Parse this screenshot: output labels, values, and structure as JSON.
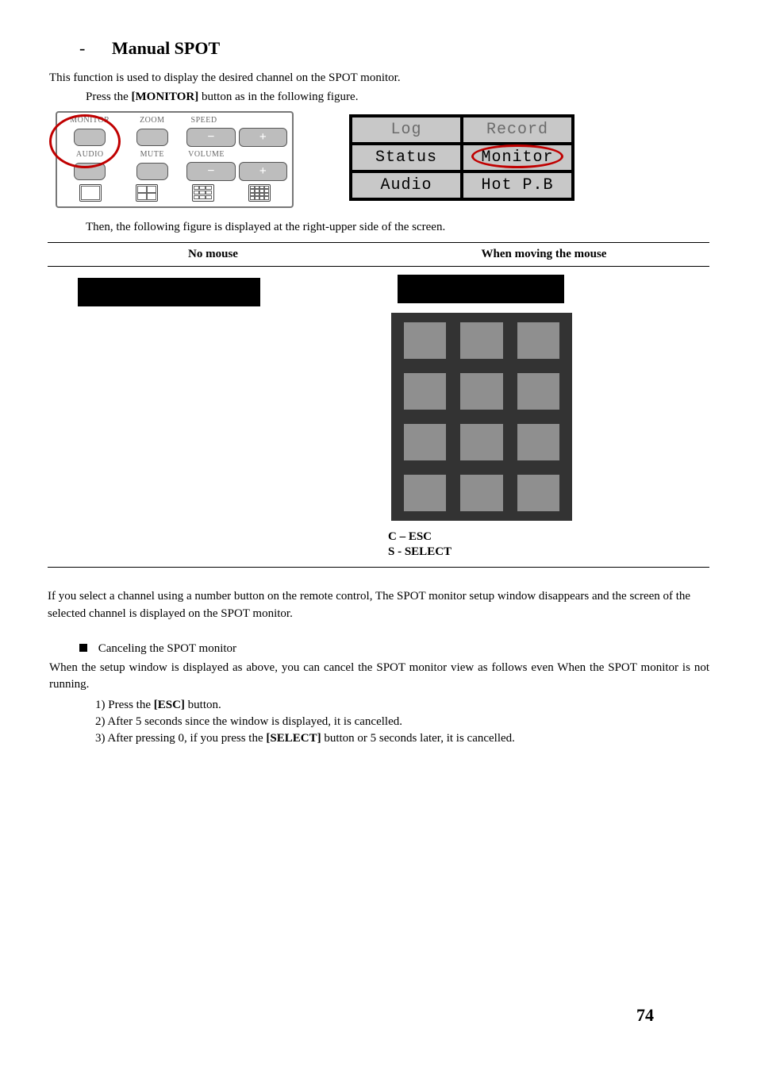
{
  "heading": {
    "dash": "-",
    "title": "Manual SPOT"
  },
  "intro": "This function is used to display the desired channel on the SPOT monitor.",
  "press_line_pre": "Press the ",
  "press_line_btn": "[MONITOR]",
  "press_line_post": " button as in the following figure.",
  "remote": {
    "row1": {
      "left_cap": "MONITOR",
      "mid_cap": "ZOOM",
      "right_cap": "SPEED"
    },
    "row2": {
      "left_cap": "AUDIO",
      "mid_cap": "MUTE",
      "right_cap": "VOLUME"
    },
    "minus": "−",
    "plus": "+"
  },
  "menu": {
    "cells": [
      {
        "label": "Log",
        "gray": true
      },
      {
        "label": "Record",
        "gray": true
      },
      {
        "label": "Status",
        "gray": false
      },
      {
        "label": "Monitor",
        "gray": false
      },
      {
        "label": "Audio",
        "gray": false
      },
      {
        "label": "Hot P.B",
        "gray": false
      }
    ],
    "oval_cell_index": 3
  },
  "then_line": "Then, the following figure is displayed at the right-upper side of the screen.",
  "table": {
    "head_left": "No mouse",
    "head_right": "When moving the mouse",
    "caption1": "C – ESC",
    "caption2": "S - SELECT",
    "numpad_rows": 4,
    "numpad_cols": 3
  },
  "select_para": "If you select a channel using a number button on the remote control, The SPOT monitor setup window disappears and the screen of the selected channel is displayed on the SPOT monitor.",
  "cancel_title": "Canceling the SPOT monitor",
  "cancel_para": "When the setup window is displayed as above, you can cancel the SPOT monitor view as follows even When the SPOT monitor is not running.",
  "steps": {
    "s1_pre": "1)  Press the ",
    "s1_b": "[ESC]",
    "s1_post": " button.",
    "s2": "2)  After 5 seconds since the window is displayed, it is cancelled.",
    "s3_pre": "3)  After pressing 0, if you press the ",
    "s3_b": "[SELECT]",
    "s3_post": " button or 5 seconds later, it is cancelled."
  },
  "page_number": "74",
  "colors": {
    "annotation_red": "#c00000",
    "panel_gray": "#c8c8c8",
    "numpad_bg": "#333333",
    "numbtn": "#8f8f8f"
  }
}
